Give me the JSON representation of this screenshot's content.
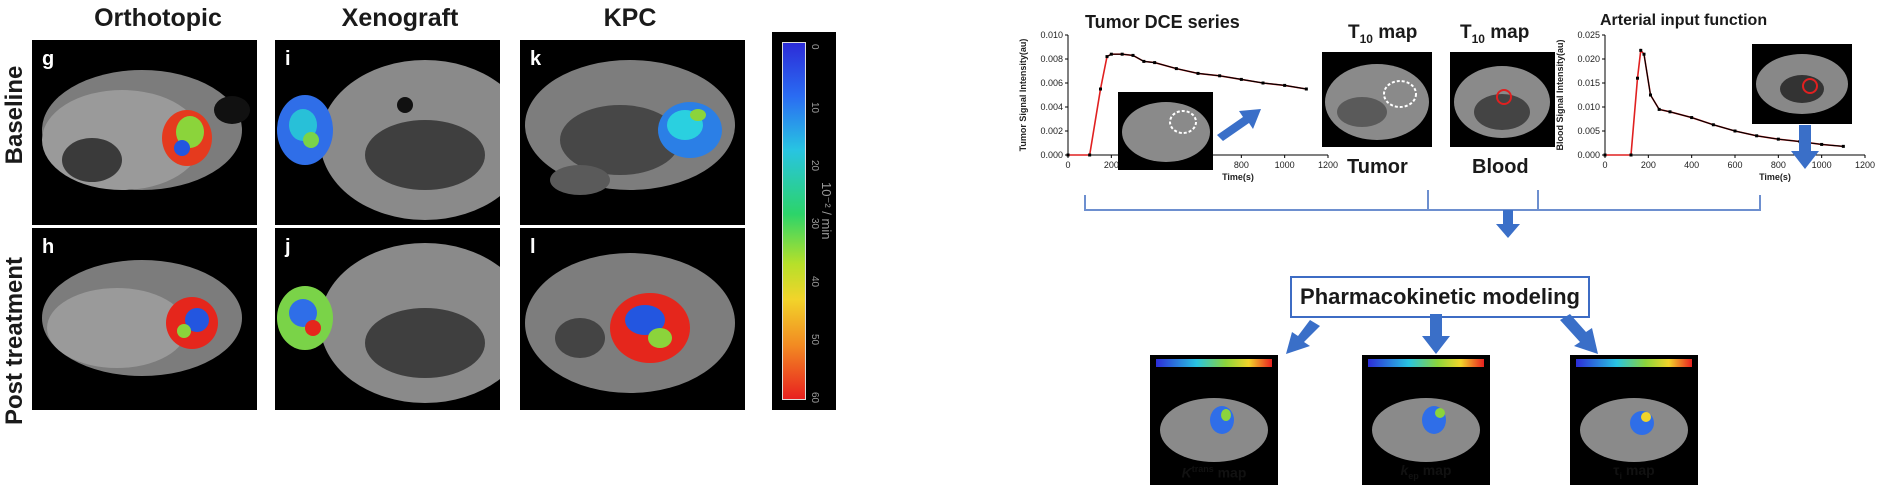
{
  "left": {
    "columns": [
      "Orthotopic",
      "Xenograft",
      "KPC"
    ],
    "rows": [
      "Baseline",
      "Post treatment"
    ],
    "panel_labels": [
      "g",
      "i",
      "k",
      "h",
      "j",
      "l"
    ],
    "colorbar": {
      "ticks": [
        "0",
        "10",
        "20",
        "30",
        "40",
        "50",
        "60"
      ],
      "unit": "10⁻² / min"
    }
  },
  "right": {
    "tumor_series_title": "Tumor DCE series",
    "t10_map_title": "T",
    "t10_sub": "10",
    "t10_suffix": " map",
    "tumor_label": "Tumor",
    "blood_label": "Blood",
    "aif_title": "Arterial input function",
    "modeling_label": "Pharmacokinetic modeling",
    "maps": [
      {
        "main": "K",
        "sup": "trans",
        "suffix": " map"
      },
      {
        "main": "k",
        "sub": "ep",
        "suffix": " map"
      },
      {
        "main": "τ",
        "sub": "i",
        "suffix": " map"
      }
    ]
  },
  "chart_data": [
    {
      "type": "line",
      "title": "",
      "xlabel": "Time(s)",
      "ylabel": "Tumor Signal Intensity(au)",
      "xlim": [
        0,
        1200
      ],
      "ylim": [
        0,
        0.01
      ],
      "xticks": [
        "0",
        "200",
        "400",
        "600",
        "800",
        "1000",
        "1200"
      ],
      "yticks": [
        "0.000",
        "0.002",
        "0.004",
        "0.006",
        "0.008",
        "0.010"
      ],
      "x": [
        0,
        100,
        150,
        180,
        200,
        250,
        300,
        350,
        400,
        500,
        600,
        700,
        800,
        900,
        1000,
        1100
      ],
      "values": [
        0,
        0,
        0.0055,
        0.0082,
        0.0084,
        0.0084,
        0.0083,
        0.0078,
        0.0077,
        0.0072,
        0.0068,
        0.0066,
        0.0063,
        0.006,
        0.0058,
        0.0055
      ]
    },
    {
      "type": "line",
      "title": "",
      "xlabel": "Time(s)",
      "ylabel": "Blood Signal Intensity(au)",
      "xlim": [
        0,
        1200
      ],
      "ylim": [
        0,
        0.025
      ],
      "xticks": [
        "0",
        "200",
        "400",
        "600",
        "800",
        "1000",
        "1200"
      ],
      "yticks": [
        "0.000",
        "0.005",
        "0.010",
        "0.015",
        "0.020",
        "0.025"
      ],
      "x": [
        0,
        120,
        150,
        165,
        180,
        210,
        250,
        300,
        400,
        500,
        600,
        700,
        800,
        900,
        1000,
        1100
      ],
      "values": [
        0,
        0,
        0.016,
        0.0218,
        0.021,
        0.0125,
        0.0095,
        0.009,
        0.0078,
        0.0063,
        0.005,
        0.004,
        0.0033,
        0.0028,
        0.0022,
        0.0018
      ]
    }
  ]
}
